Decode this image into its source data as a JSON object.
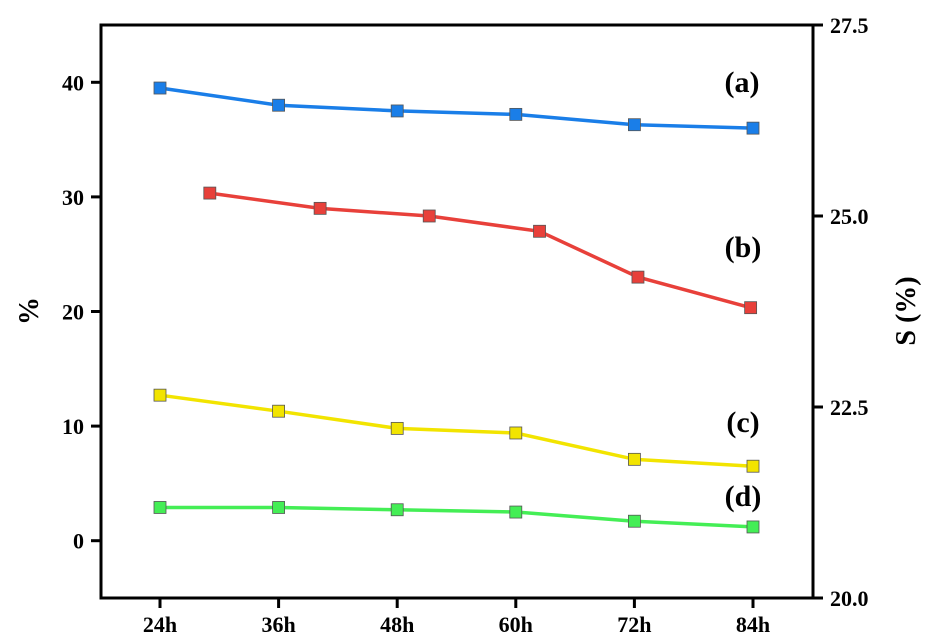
{
  "chart_data": {
    "type": "line",
    "x_categories": [
      "24h",
      "36h",
      "48h",
      "60h",
      "72h",
      "84h"
    ],
    "left_axis": {
      "label": "%",
      "ylim": [
        -5,
        45
      ],
      "ticks": [
        0,
        10,
        20,
        30,
        40
      ],
      "tick_labels": [
        "0",
        "10",
        "20",
        "30",
        "40"
      ]
    },
    "right_axis": {
      "label": "S (%)",
      "ylim": [
        20.0,
        27.5
      ],
      "ticks": [
        20.0,
        22.5,
        25.0,
        27.5
      ],
      "tick_labels": [
        "20.0",
        "22.5",
        "25.0",
        "27.5"
      ]
    },
    "series": [
      {
        "label": "(a)",
        "color": "#1a7ee8",
        "axis": "left",
        "x": [
          0,
          1,
          2,
          3,
          4,
          5
        ],
        "values": [
          39.5,
          38.0,
          37.5,
          37.2,
          36.3,
          36.0
        ]
      },
      {
        "label": "(b)",
        "color": "#e8403a",
        "axis": "right",
        "x": [
          0.42,
          1.35,
          2.27,
          3.2,
          4.03,
          4.98
        ],
        "values": [
          25.3,
          25.1,
          25.0,
          24.8,
          24.2,
          23.8
        ]
      },
      {
        "label": "(c)",
        "color": "#f2e400",
        "axis": "left",
        "x": [
          0,
          1,
          2,
          3,
          4,
          5
        ],
        "values": [
          12.7,
          11.3,
          9.8,
          9.4,
          7.1,
          6.5
        ]
      },
      {
        "label": "(d)",
        "color": "#44ee55",
        "axis": "left",
        "x": [
          0,
          1,
          2,
          3,
          4,
          5
        ],
        "values": [
          2.9,
          2.9,
          2.7,
          2.5,
          1.7,
          1.2
        ]
      }
    ],
    "grid": false,
    "legend": "none"
  }
}
